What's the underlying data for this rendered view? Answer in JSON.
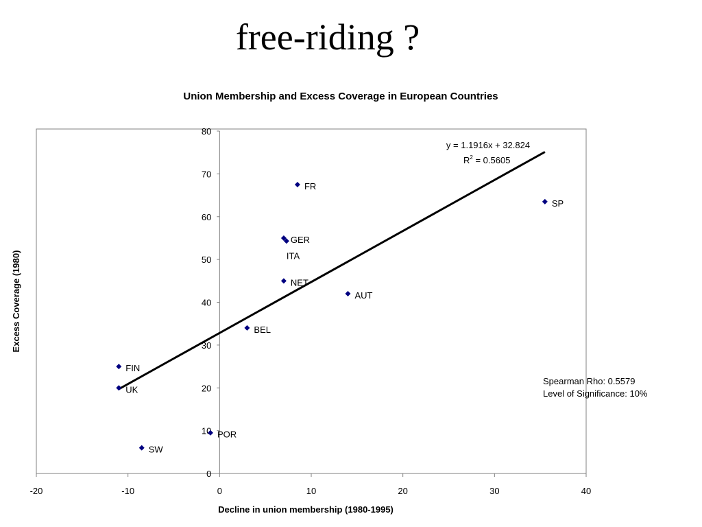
{
  "slide": {
    "title": "free-riding ?"
  },
  "chart_data": {
    "type": "scatter",
    "title": "Union Membership and Excess Coverage in European Countries",
    "xlabel": "Decline in union membership (1980-1995)",
    "ylabel": "Excess Coverage (1980)",
    "xlim": [
      -20,
      40
    ],
    "ylim": [
      0,
      80
    ],
    "xticks": [
      -20,
      -10,
      0,
      10,
      20,
      30,
      40
    ],
    "yticks": [
      0,
      10,
      20,
      30,
      40,
      50,
      60,
      70,
      80
    ],
    "grid": false,
    "points": [
      {
        "label": "FR",
        "x": 8.5,
        "y": 67.5
      },
      {
        "label": "SP",
        "x": 35.5,
        "y": 63.5
      },
      {
        "label": "GER",
        "x": 7.0,
        "y": 55.0
      },
      {
        "label": "ITA",
        "x": 7.3,
        "y": 54.3
      },
      {
        "label": "NET",
        "x": 7.0,
        "y": 45.0
      },
      {
        "label": "AUT",
        "x": 14.0,
        "y": 42.0
      },
      {
        "label": "BEL",
        "x": 3.0,
        "y": 34.0
      },
      {
        "label": "FIN",
        "x": -11.0,
        "y": 25.0
      },
      {
        "label": "UK",
        "x": -11.0,
        "y": 20.0
      },
      {
        "label": "POR",
        "x": -1.0,
        "y": 9.5
      },
      {
        "label": "SW",
        "x": -8.5,
        "y": 6.0
      }
    ],
    "marker_color": "#000080",
    "trendline": {
      "slope": 1.1916,
      "intercept": 32.824,
      "x_range": [
        -11,
        35.5
      ],
      "equation": "y = 1.1916x + 32.824",
      "r2_prefix": "R",
      "r2_exp": "2",
      "r2_value": " = 0.5605"
    },
    "annotations": {
      "spearman": "Spearman Rho: 0.5579",
      "significance": "Level of Significance: 10%"
    }
  }
}
